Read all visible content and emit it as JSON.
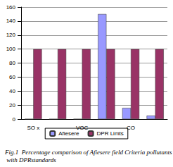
{
  "chart_data": {
    "type": "bar",
    "title": "Fig.1  Percentage comparison of Afiesere field Criteria pollutants with DPRstandards",
    "categories": [
      "SO x",
      null,
      "VOC",
      null,
      "CO",
      null
    ],
    "series": [
      {
        "name": "Afiesere",
        "color": "#9999ff",
        "values": [
          0,
          0,
          0,
          150,
          16,
          5
        ]
      },
      {
        "name": "DPR Limts",
        "color": "#993366",
        "values": [
          100,
          100,
          100,
          100,
          100,
          100
        ]
      }
    ],
    "ylim": [
      0,
      160
    ],
    "yticks": [
      0,
      20,
      40,
      60,
      80,
      100,
      120,
      140,
      160
    ],
    "grid": true,
    "legend": "bottom"
  }
}
